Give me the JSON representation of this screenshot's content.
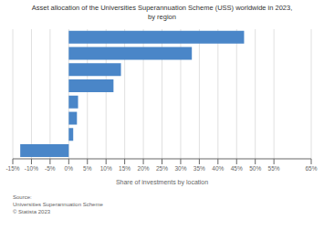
{
  "chart_data": {
    "type": "bar",
    "orientation": "horizontal",
    "title": "Asset allocation of the Universities Superannuation Scheme (USS) worldwide in 2023,\nby region",
    "xlabel": "Share of investments by location",
    "categories": [
      null,
      null,
      null,
      null,
      null,
      null,
      null,
      null
    ],
    "values": [
      47,
      33,
      14,
      12,
      2.5,
      2.2,
      1.2,
      -13
    ],
    "color": "#4a86c8",
    "xlim": [
      -15,
      65
    ],
    "xticks": [
      {
        "value": -15,
        "label": "-15%"
      },
      {
        "value": -10,
        "label": "-10%"
      },
      {
        "value": -5,
        "label": "-5%"
      },
      {
        "value": 0,
        "label": "0%"
      },
      {
        "value": 5,
        "label": "5%"
      },
      {
        "value": 10,
        "label": "10%"
      },
      {
        "value": 15,
        "label": "15%"
      },
      {
        "value": 20,
        "label": "20%"
      },
      {
        "value": 25,
        "label": "25%"
      },
      {
        "value": 30,
        "label": "30%"
      },
      {
        "value": 35,
        "label": "35%"
      },
      {
        "value": 40,
        "label": "40%"
      },
      {
        "value": 45,
        "label": "45%"
      },
      {
        "value": 50,
        "label": "50%"
      },
      {
        "value": 55,
        "label": "55%"
      },
      {
        "value": 65,
        "label": "65%"
      }
    ],
    "grid": true,
    "tick_labels": "x",
    "annotations": [
      "Source:\nUniversities Superannuation Scheme\n© Statista 2023"
    ]
  }
}
